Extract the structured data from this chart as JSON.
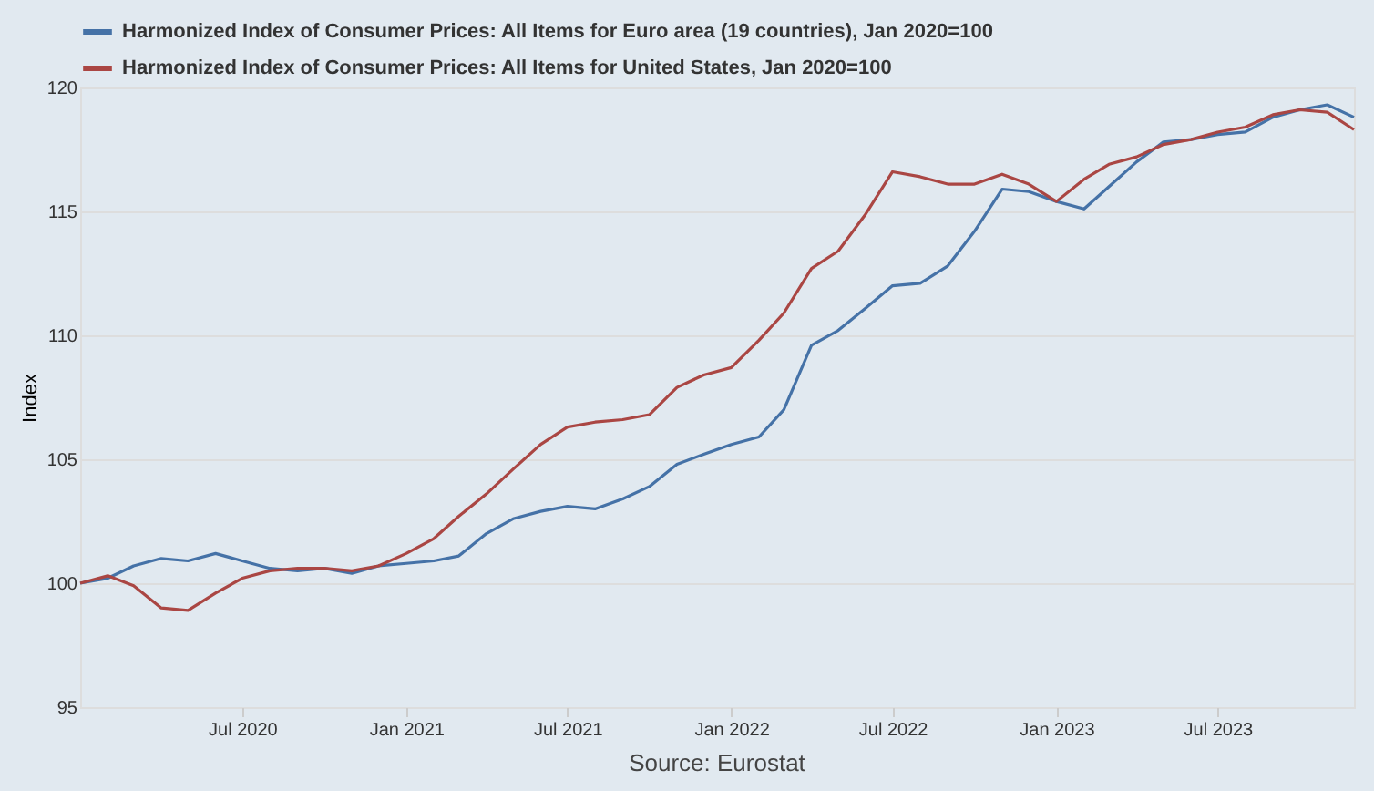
{
  "chart_data": {
    "type": "line",
    "ylabel": "Index",
    "x": [
      "2020-01",
      "2020-02",
      "2020-03",
      "2020-04",
      "2020-05",
      "2020-06",
      "2020-07",
      "2020-08",
      "2020-09",
      "2020-10",
      "2020-11",
      "2020-12",
      "2021-01",
      "2021-02",
      "2021-03",
      "2021-04",
      "2021-05",
      "2021-06",
      "2021-07",
      "2021-08",
      "2021-09",
      "2021-10",
      "2021-11",
      "2021-12",
      "2022-01",
      "2022-02",
      "2022-03",
      "2022-04",
      "2022-05",
      "2022-06",
      "2022-07",
      "2022-08",
      "2022-09",
      "2022-10",
      "2022-11",
      "2022-12",
      "2023-01",
      "2023-02",
      "2023-03",
      "2023-04",
      "2023-05",
      "2023-06",
      "2023-07",
      "2023-08",
      "2023-09",
      "2023-10",
      "2023-11",
      "2023-12"
    ],
    "series": [
      {
        "name": "Harmonized Index of Consumer Prices: All Items for Euro area (19 countries), Jan 2020=100",
        "color": "#4572a7",
        "values": [
          100,
          100.2,
          100.7,
          101.0,
          100.9,
          101.2,
          100.9,
          100.6,
          100.5,
          100.6,
          100.4,
          100.7,
          100.8,
          100.9,
          101.1,
          102.0,
          102.6,
          102.9,
          103.1,
          103.0,
          103.4,
          103.9,
          104.8,
          105.2,
          105.6,
          105.9,
          107.0,
          109.6,
          110.2,
          111.1,
          112.0,
          112.1,
          112.8,
          114.2,
          115.9,
          115.8,
          115.4,
          115.1,
          116.0,
          117.0,
          117.8,
          117.9,
          118.1,
          118.2,
          118.8,
          119.1,
          119.3,
          118.8
        ]
      },
      {
        "name": "Harmonized Index of Consumer Prices: All Items for United States, Jan 2020=100",
        "color": "#aa4643",
        "values": [
          100,
          100.3,
          99.9,
          99.0,
          98.9,
          99.6,
          100.2,
          100.5,
          100.6,
          100.6,
          100.5,
          100.7,
          101.2,
          101.8,
          102.7,
          103.6,
          104.6,
          105.6,
          106.3,
          106.5,
          106.6,
          106.8,
          107.9,
          108.4,
          108.7,
          109.8,
          110.9,
          112.7,
          113.4,
          114.9,
          116.6,
          116.4,
          116.1,
          116.1,
          116.5,
          116.1,
          115.4,
          116.3,
          116.9,
          117.2,
          117.7,
          117.9,
          118.2,
          118.4,
          118.9,
          119.1,
          119.0,
          118.3
        ]
      }
    ],
    "xlim": [
      "2020-01",
      "2023-12"
    ],
    "xticks": [
      {
        "value": "2020-07",
        "label": "Jul 2020"
      },
      {
        "value": "2021-01",
        "label": "Jan 2021"
      },
      {
        "value": "2021-07",
        "label": "Jul 2021"
      },
      {
        "value": "2022-01",
        "label": "Jan 2022"
      },
      {
        "value": "2022-07",
        "label": "Jul 2022"
      },
      {
        "value": "2023-01",
        "label": "Jan 2023"
      },
      {
        "value": "2023-07",
        "label": "Jul 2023"
      }
    ],
    "ylim": [
      95,
      120
    ],
    "yticks": [
      95,
      100,
      105,
      110,
      115,
      120
    ],
    "grid": "y",
    "legend": "top left",
    "line_style": "solid",
    "marker": "none",
    "annotations": [
      "Source: Eurostat"
    ]
  }
}
